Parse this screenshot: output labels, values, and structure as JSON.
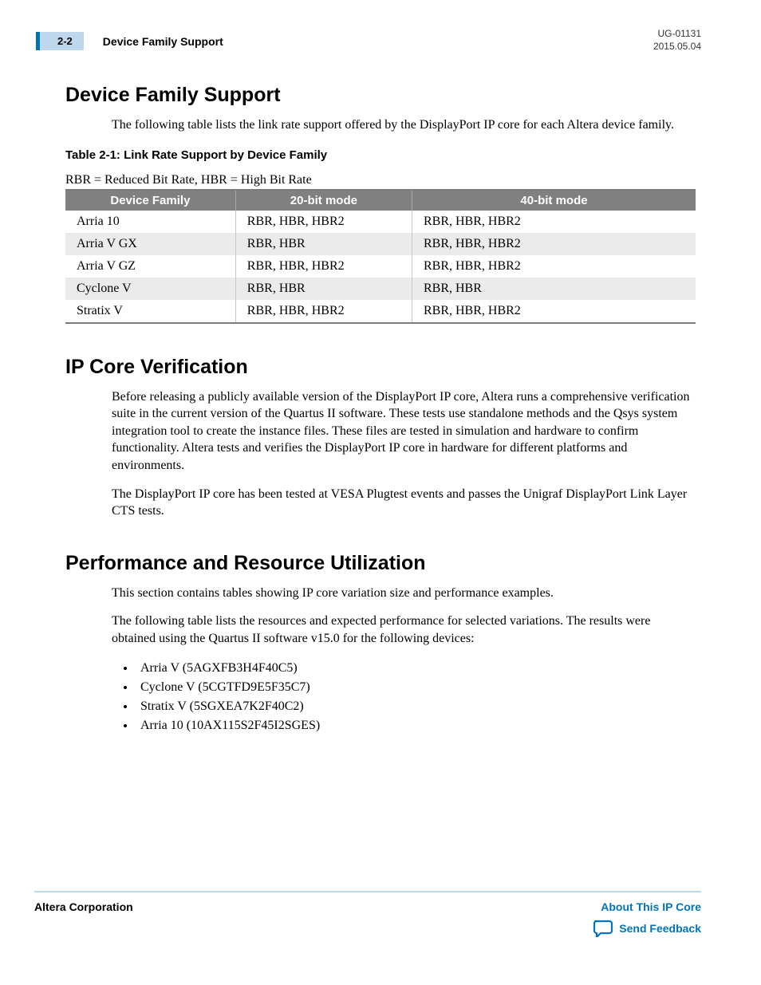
{
  "header": {
    "page_number": "2-2",
    "running_title": "Device Family Support",
    "doc_id": "UG-01131",
    "doc_date": "2015.05.04"
  },
  "sections": {
    "device_family": {
      "heading": "Device Family Support",
      "intro": "The following table lists the link rate support offered by the DisplayPort IP core for each Altera device family.",
      "table_caption": "Table 2-1: Link Rate Support by Device Family",
      "table_note": "RBR = Reduced Bit Rate, HBR = High Bit Rate",
      "table": {
        "columns": [
          "Device Family",
          "20-bit mode",
          "40-bit mode"
        ],
        "col_widths_pct": [
          27,
          28,
          45
        ],
        "header_bg": "#808080",
        "header_fg": "#ffffff",
        "row_alt_bg": "#ebebeb",
        "border_color": "#7a7a7a",
        "rows": [
          [
            "Arria 10",
            "RBR, HBR, HBR2",
            "RBR, HBR, HBR2"
          ],
          [
            "Arria V GX",
            "RBR, HBR",
            "RBR, HBR, HBR2"
          ],
          [
            "Arria V GZ",
            "RBR, HBR, HBR2",
            "RBR, HBR, HBR2"
          ],
          [
            "Cyclone V",
            "RBR, HBR",
            "RBR, HBR"
          ],
          [
            "Stratix V",
            "RBR, HBR, HBR2",
            "RBR, HBR, HBR2"
          ]
        ]
      }
    },
    "ip_core": {
      "heading": "IP Core Verification",
      "para1": "Before releasing a publicly available version of the DisplayPort IP core, Altera runs a comprehensive verification suite in the current version of the Quartus  II software. These tests use standalone methods and the Qsys system integration tool to create the instance files. These files are tested in simulation and hardware to confirm functionality. Altera tests and verifies the DisplayPort IP core in hardware for different platforms and environments.",
      "para2": "The DisplayPort IP core has been tested at VESA Plugtest events and passes the Unigraf DisplayPort Link Layer CTS tests."
    },
    "perf": {
      "heading": "Performance and Resource Utilization",
      "para1": "This section contains tables showing IP core variation size and performance examples.",
      "para2": "The following table lists the resources and expected performance for selected variations. The results were obtained using the Quartus II software v15.0 for the following devices:",
      "devices": [
        "Arria V (5AGXFB3H4F40C5)",
        "Cyclone V (5CGTFD9E5F35C7)",
        "Stratix V (5SGXEA7K2F40C2)",
        "Arria 10 (10AX115S2F45I2SGES)"
      ]
    }
  },
  "footer": {
    "corp": "Altera Corporation",
    "link_label": "About This IP Core",
    "feedback_label": "Send Feedback",
    "link_color": "#0073bb",
    "rule_color": "#bfd7ed"
  },
  "colors": {
    "accent_blue": "#0073bb",
    "pale_blue": "#bfd7ed",
    "text": "#000000",
    "background": "#ffffff"
  },
  "typography": {
    "heading_font": "Myriad Pro",
    "body_font": "Minion Pro",
    "h1_size_pt": 19,
    "body_size_pt": 12
  }
}
